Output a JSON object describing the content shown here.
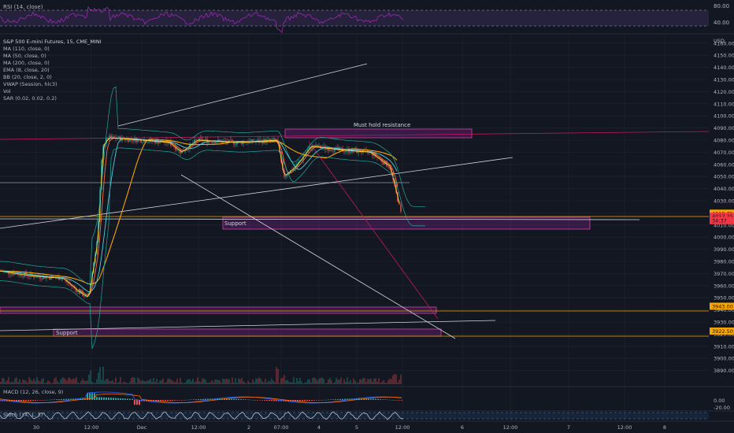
{
  "rsi_pane": {
    "title": "RSI (14, close)",
    "levels": [
      80,
      40
    ],
    "ylabels": [
      "80.00",
      "40.00"
    ]
  },
  "main_pane": {
    "legend": [
      "S&P 500 E-mini Futures, 15, CME_MINI",
      "MA (110, close, 0)",
      "MA (50, close, 0)",
      "MA (200, close, 0)",
      "EMA (8, close, 20)",
      "BB (20, close, 2, 0)",
      "VWAP (Session, hlc3)",
      "Vol",
      "SAR (0.02, 0.02, 0.2)"
    ],
    "currency": "USD",
    "annotations": {
      "resistance": "Must hold resistance",
      "support_upper": "Support",
      "support_lower": "Support"
    },
    "price_tags": [
      {
        "text": "4019.75",
        "color": "#f7a600",
        "price": 4019.75
      },
      {
        "text": "4017.25",
        "color": "#f23645",
        "price": 4017.25
      },
      {
        "text": "34:37",
        "color": "#f23645",
        "price": 4013.6
      },
      {
        "text": "3943.00",
        "color": "#f7a600",
        "price": 3943.0
      },
      {
        "text": "3922.50",
        "color": "#f7a600",
        "price": 3922.5
      }
    ]
  },
  "macd_pane": {
    "title": "MACD (12, 26, close, 9)",
    "ylabels": [
      "0.00",
      "-20.00"
    ]
  },
  "stoch_pane": {
    "title": "Stoch (14, 1, 3)"
  },
  "time_axis": [
    "30",
    "12:00",
    "Dec",
    "12:00",
    "2",
    "07:00",
    "4",
    "5",
    "12:00",
    "6",
    "12:00",
    "7",
    "12:00",
    "8"
  ],
  "chart_data": {
    "type": "line",
    "title": "S&P 500 E-mini Futures, 15, CME_MINI",
    "ylabel": "USD",
    "ylim": [
      3880,
      4167
    ],
    "yticks": [
      3890,
      3900,
      3910,
      3920,
      3930,
      3940,
      3950,
      3960,
      3970,
      3980,
      3990,
      4000,
      4010,
      4020,
      4030,
      4040,
      4050,
      4060,
      4070,
      4080,
      4090,
      4100,
      4110,
      4120,
      4130,
      4140,
      4150,
      4160
    ],
    "x_labels": [
      "30",
      "12:00",
      "Dec",
      "12:00",
      "2",
      "07:00",
      "4",
      "5",
      "12:00",
      "6",
      "12:00",
      "7",
      "12:00",
      "8"
    ],
    "close_series": [
      {
        "label": "30",
        "value": 3972
      },
      {
        "label": "12:00",
        "value": 3950
      },
      {
        "label": "Dec",
        "value": 4082
      },
      {
        "label": "12:00",
        "value": 4078
      },
      {
        "label": "2",
        "value": 4080
      },
      {
        "label": "07:00",
        "value": 4050
      },
      {
        "label": "4",
        "value": 4075
      },
      {
        "label": "5",
        "value": 4070
      },
      {
        "label": "12:00",
        "value": 4017.25
      }
    ],
    "last_price": 4017.25
  }
}
